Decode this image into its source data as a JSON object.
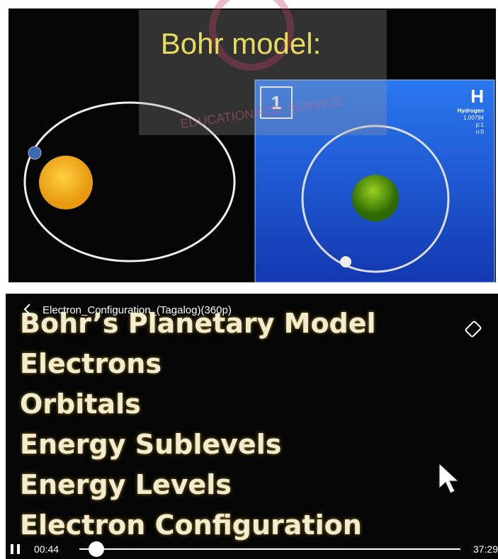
{
  "top_frame": {
    "title": "Bohr model:",
    "watermark": "EDUCATION FOR SERVICE",
    "element": {
      "number": "1",
      "symbol": "H",
      "name": "Hydrogen",
      "mass": "1.00794",
      "protons": "p:1",
      "neutrons": "n:0"
    }
  },
  "player": {
    "file_title": "Electron_Configuration_(Tagalog)(360p)",
    "lines": [
      "Bohr’s Planetary Model",
      "Electrons",
      "Orbitals",
      "Energy Sublevels",
      "Energy Levels",
      "Electron Configuration"
    ],
    "elapsed": "00:44",
    "duration": "37:29"
  }
}
